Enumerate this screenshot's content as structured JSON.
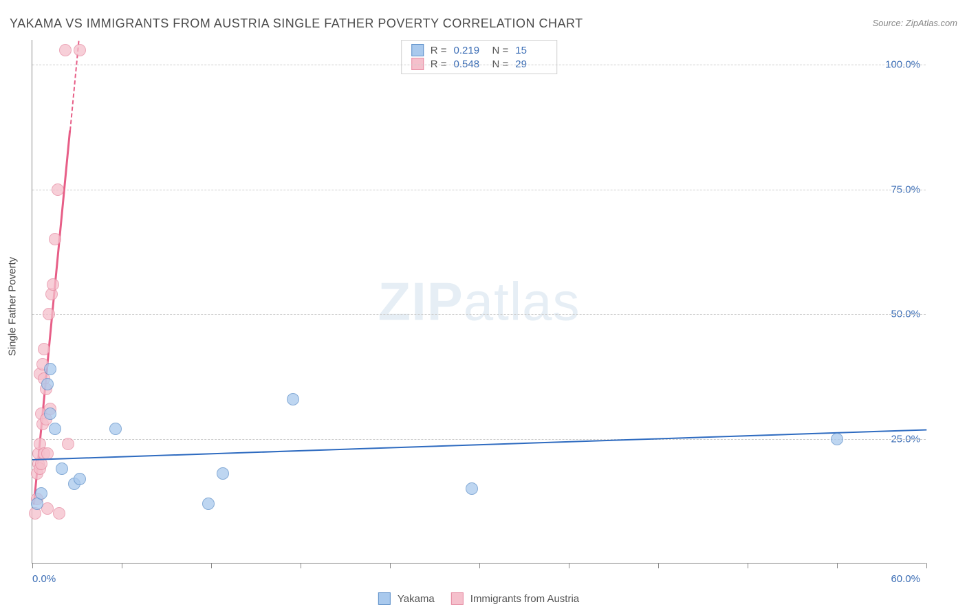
{
  "title": "YAKAMA VS IMMIGRANTS FROM AUSTRIA SINGLE FATHER POVERTY CORRELATION CHART",
  "source": "Source: ZipAtlas.com",
  "y_axis_label": "Single Father Poverty",
  "watermark": {
    "bold": "ZIP",
    "light": "atlas"
  },
  "chart": {
    "type": "scatter",
    "background_color": "#ffffff",
    "grid_color": "#cccccc",
    "axis_color": "#888888",
    "label_color": "#3b6db5",
    "xlim": [
      0,
      60
    ],
    "ylim": [
      0,
      105
    ],
    "xticks": [
      0,
      6,
      12,
      18,
      24,
      30,
      36,
      42,
      48,
      54,
      60
    ],
    "ytick_labels": [
      {
        "value": 25,
        "text": "25.0%"
      },
      {
        "value": 50,
        "text": "50.0%"
      },
      {
        "value": 75,
        "text": "75.0%"
      },
      {
        "value": 100,
        "text": "100.0%"
      }
    ],
    "x_label_min": "0.0%",
    "x_label_max": "60.0%",
    "series": [
      {
        "name": "Yakama",
        "fill_color": "#a9c9ed",
        "stroke_color": "#5d8fc9",
        "marker_radius": 9,
        "stroke_width": 1,
        "trend_color": "#2e6bc0",
        "trend_width": 2,
        "R": "0.219",
        "N": "15",
        "trend": {
          "x1": 0,
          "y1": 21,
          "x2": 60,
          "y2": 27
        },
        "points": [
          {
            "x": 0.3,
            "y": 12
          },
          {
            "x": 0.6,
            "y": 14
          },
          {
            "x": 1.0,
            "y": 36
          },
          {
            "x": 1.2,
            "y": 39
          },
          {
            "x": 1.2,
            "y": 30
          },
          {
            "x": 1.5,
            "y": 27
          },
          {
            "x": 2.0,
            "y": 19
          },
          {
            "x": 2.8,
            "y": 16
          },
          {
            "x": 3.2,
            "y": 17
          },
          {
            "x": 5.6,
            "y": 27
          },
          {
            "x": 11.8,
            "y": 12
          },
          {
            "x": 12.8,
            "y": 18
          },
          {
            "x": 17.5,
            "y": 33
          },
          {
            "x": 29.5,
            "y": 15
          },
          {
            "x": 54.0,
            "y": 25
          }
        ]
      },
      {
        "name": "Immigrants from Austria",
        "fill_color": "#f5c0cc",
        "stroke_color": "#e68aa1",
        "marker_radius": 9,
        "stroke_width": 1,
        "trend_color": "#e75e87",
        "trend_width": 2.5,
        "R": "0.548",
        "N": "29",
        "trend": {
          "x1": 0.1,
          "y1": 12,
          "x2": 3.1,
          "y2": 105
        },
        "dashed_above": 87,
        "points": [
          {
            "x": 0.2,
            "y": 10
          },
          {
            "x": 0.3,
            "y": 13
          },
          {
            "x": 0.3,
            "y": 18
          },
          {
            "x": 0.4,
            "y": 20
          },
          {
            "x": 0.4,
            "y": 22
          },
          {
            "x": 0.5,
            "y": 19
          },
          {
            "x": 0.5,
            "y": 24
          },
          {
            "x": 0.5,
            "y": 38
          },
          {
            "x": 0.6,
            "y": 20
          },
          {
            "x": 0.6,
            "y": 30
          },
          {
            "x": 0.7,
            "y": 40
          },
          {
            "x": 0.7,
            "y": 28
          },
          {
            "x": 0.8,
            "y": 22
          },
          {
            "x": 0.8,
            "y": 37
          },
          {
            "x": 0.8,
            "y": 43
          },
          {
            "x": 0.9,
            "y": 35
          },
          {
            "x": 0.9,
            "y": 29
          },
          {
            "x": 1.0,
            "y": 22
          },
          {
            "x": 1.0,
            "y": 11
          },
          {
            "x": 1.1,
            "y": 50
          },
          {
            "x": 1.2,
            "y": 31
          },
          {
            "x": 1.3,
            "y": 54
          },
          {
            "x": 1.4,
            "y": 56
          },
          {
            "x": 1.5,
            "y": 65
          },
          {
            "x": 1.7,
            "y": 75
          },
          {
            "x": 1.8,
            "y": 10
          },
          {
            "x": 2.4,
            "y": 24
          },
          {
            "x": 2.2,
            "y": 103
          },
          {
            "x": 3.2,
            "y": 103
          }
        ]
      }
    ]
  },
  "legend_stats": {
    "r_label": "R  = ",
    "n_label": "N  = "
  }
}
